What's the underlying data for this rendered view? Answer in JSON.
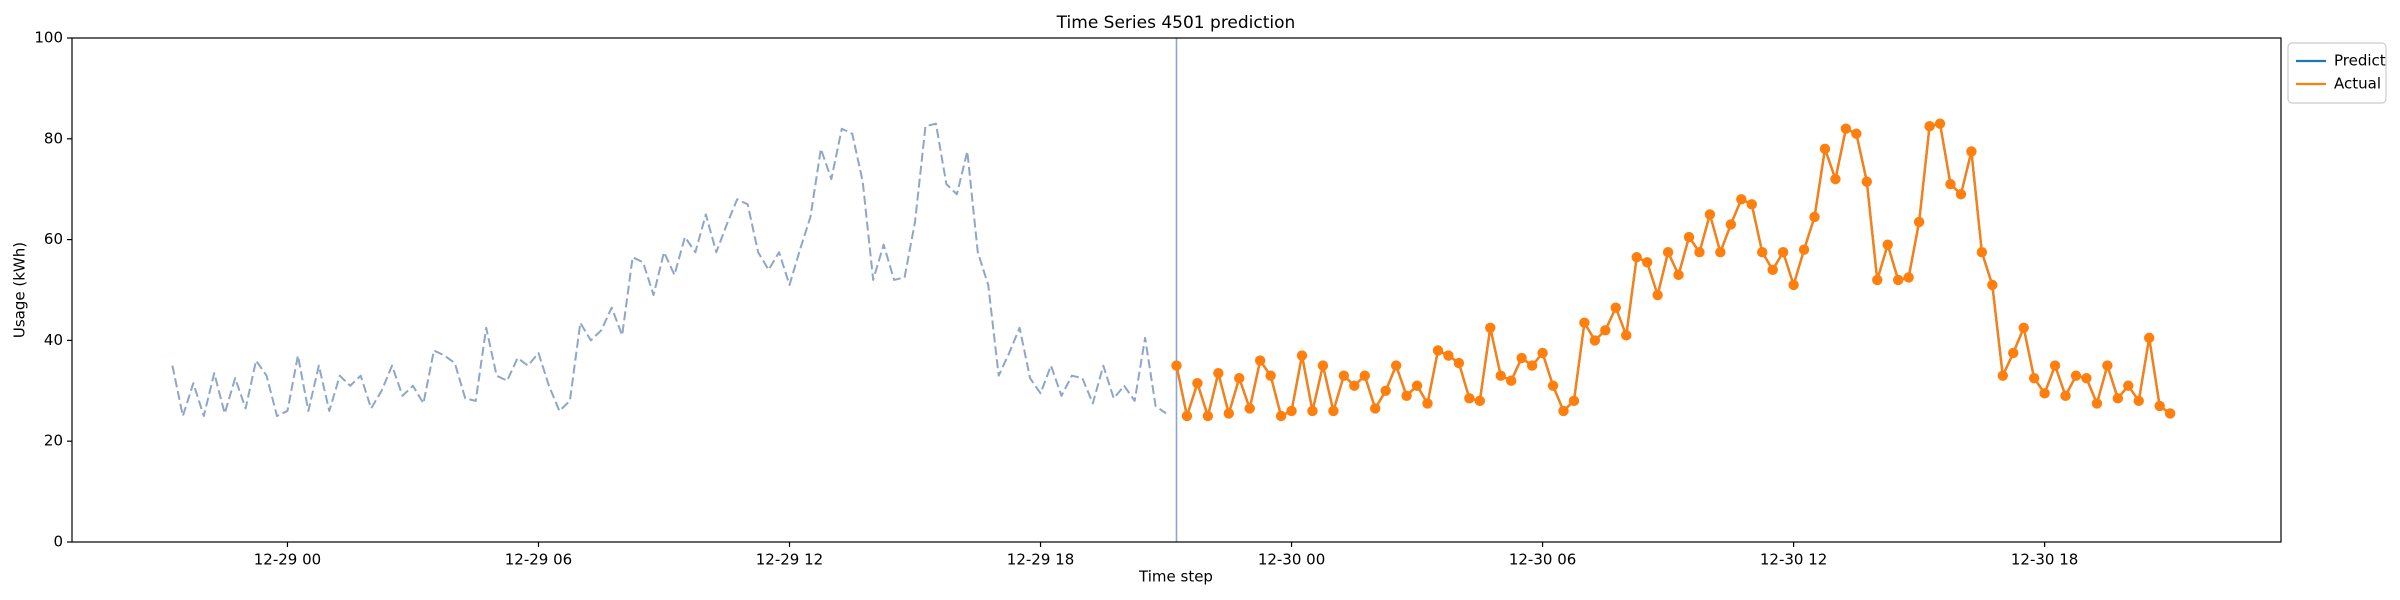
{
  "chart_data": {
    "type": "line",
    "title": "Time Series 4501 prediction",
    "xlabel": "Time step",
    "ylabel": "Usage (kWh)",
    "xlim": [
      -5.15,
      47.65
    ],
    "ylim": [
      0,
      100
    ],
    "xticks": [
      {
        "value": 0,
        "label": "12-29 00"
      },
      {
        "value": 6,
        "label": "12-29 06"
      },
      {
        "value": 12,
        "label": "12-29 12"
      },
      {
        "value": 18,
        "label": "12-29 18"
      },
      {
        "value": 24,
        "label": "12-30 00"
      },
      {
        "value": 30,
        "label": "12-30 06"
      },
      {
        "value": 36,
        "label": "12-30 12"
      },
      {
        "value": 42,
        "label": "12-30 18"
      }
    ],
    "yticks": [
      0,
      20,
      40,
      60,
      80,
      100
    ],
    "vline": 21.25,
    "vline_color": "#8ea6d0",
    "legend": "upper right outside",
    "series": [
      {
        "color": "#8ea6c8",
        "dashed": true,
        "markers": false,
        "x": [
          -2.75,
          -2.5,
          -2.25,
          -2,
          -1.75,
          -1.5,
          -1.25,
          -1,
          -0.75,
          -0.5,
          -0.25,
          0,
          0.25,
          0.5,
          0.75,
          1,
          1.25,
          1.5,
          1.75,
          2,
          2.25,
          2.5,
          2.75,
          3,
          3.25,
          3.5,
          3.75,
          4,
          4.25,
          4.5,
          4.75,
          5,
          5.25,
          5.5,
          5.75,
          6,
          6.25,
          6.5,
          6.75,
          7,
          7.25,
          7.5,
          7.75,
          8,
          8.25,
          8.5,
          8.75,
          9,
          9.25,
          9.5,
          9.75,
          10,
          10.25,
          10.5,
          10.75,
          11,
          11.25,
          11.5,
          11.75,
          12,
          12.25,
          12.5,
          12.75,
          13,
          13.25,
          13.5,
          13.75,
          14,
          14.25,
          14.5,
          14.75,
          15,
          15.25,
          15.5,
          15.75,
          16,
          16.25,
          16.5,
          16.75,
          17,
          17.25,
          17.5,
          17.75,
          18,
          18.25,
          18.5,
          18.75,
          19,
          19.25,
          19.5,
          19.75,
          20,
          20.25,
          20.5,
          20.75,
          21
        ],
        "values": [
          35,
          25,
          31.5,
          25,
          33.5,
          25.5,
          32.5,
          26.5,
          36,
          33,
          25,
          26,
          37,
          26,
          35,
          26,
          33,
          31,
          33,
          26.5,
          30,
          35,
          29,
          31,
          27.5,
          38,
          37,
          35.5,
          28.5,
          28,
          42.5,
          33,
          32,
          36.5,
          35,
          37.5,
          31,
          26,
          28,
          43.5,
          40,
          42,
          46.5,
          41,
          56.5,
          55.5,
          49,
          57.5,
          53,
          60.5,
          57.5,
          65,
          57.5,
          63,
          68,
          67,
          57.5,
          54,
          57.5,
          51,
          58,
          64.5,
          78,
          72,
          82,
          81,
          71.5,
          52,
          59,
          52,
          52.5,
          63.5,
          82.5,
          83,
          71,
          69,
          77.5,
          57.5,
          51,
          33,
          37.5,
          42.5,
          32.5,
          29.5,
          35,
          29,
          33,
          32.5,
          27.5,
          35,
          28.5,
          31,
          28,
          40.5,
          27,
          25.5
        ]
      },
      {
        "name": "Predict",
        "color": "#1f77b4",
        "dashed": false,
        "markers": false,
        "x": [
          21.25,
          21.5,
          21.75,
          22,
          22.25,
          22.5,
          22.75,
          23,
          23.25,
          23.5,
          23.75,
          24,
          24.25,
          24.5,
          24.75,
          25,
          25.25,
          25.5,
          25.75,
          26,
          26.25,
          26.5,
          26.75,
          27,
          27.25,
          27.5,
          27.75,
          28,
          28.25,
          28.5,
          28.75,
          29,
          29.25,
          29.5,
          29.75,
          30,
          30.25,
          30.5,
          30.75,
          31,
          31.25,
          31.5,
          31.75,
          32,
          32.25,
          32.5,
          32.75,
          33,
          33.25,
          33.5,
          33.75,
          34,
          34.25,
          34.5,
          34.75,
          35,
          35.25,
          35.5,
          35.75,
          36,
          36.25,
          36.5,
          36.75,
          37,
          37.25,
          37.5,
          37.75,
          38,
          38.25,
          38.5,
          38.75,
          39,
          39.25,
          39.5,
          39.75,
          40,
          40.25,
          40.5,
          40.75,
          41,
          41.25,
          41.5,
          41.75,
          42,
          42.25,
          42.5,
          42.75,
          43,
          43.25,
          43.5,
          43.75,
          44,
          44.25,
          44.5,
          44.75,
          45
        ],
        "values": [
          35,
          25,
          31.5,
          25,
          33.5,
          25.5,
          32.5,
          26.5,
          36,
          33,
          25,
          26,
          37,
          26,
          35,
          26,
          33,
          31,
          33,
          26.5,
          30,
          35,
          29,
          31,
          27.5,
          38,
          37,
          35.5,
          28.5,
          28,
          42.5,
          33,
          32,
          36.5,
          35,
          37.5,
          31,
          26,
          28,
          43.5,
          40,
          42,
          46.5,
          41,
          56.5,
          55.5,
          49,
          57.5,
          53,
          60.5,
          57.5,
          65,
          57.5,
          63,
          68,
          67,
          57.5,
          54,
          57.5,
          51,
          58,
          64.5,
          78,
          72,
          82,
          81,
          71.5,
          52,
          59,
          52,
          52.5,
          63.5,
          82.5,
          83,
          71,
          69,
          77.5,
          57.5,
          51,
          33,
          37.5,
          42.5,
          32.5,
          29.5,
          35,
          29,
          33,
          32.5,
          27.5,
          35,
          28.5,
          31,
          28,
          40.5,
          27,
          25.5
        ]
      },
      {
        "name": "Actual",
        "color": "#ff7f0e",
        "dashed": false,
        "markers": true,
        "x": [
          21.25,
          21.5,
          21.75,
          22,
          22.25,
          22.5,
          22.75,
          23,
          23.25,
          23.5,
          23.75,
          24,
          24.25,
          24.5,
          24.75,
          25,
          25.25,
          25.5,
          25.75,
          26,
          26.25,
          26.5,
          26.75,
          27,
          27.25,
          27.5,
          27.75,
          28,
          28.25,
          28.5,
          28.75,
          29,
          29.25,
          29.5,
          29.75,
          30,
          30.25,
          30.5,
          30.75,
          31,
          31.25,
          31.5,
          31.75,
          32,
          32.25,
          32.5,
          32.75,
          33,
          33.25,
          33.5,
          33.75,
          34,
          34.25,
          34.5,
          34.75,
          35,
          35.25,
          35.5,
          35.75,
          36,
          36.25,
          36.5,
          36.75,
          37,
          37.25,
          37.5,
          37.75,
          38,
          38.25,
          38.5,
          38.75,
          39,
          39.25,
          39.5,
          39.75,
          40,
          40.25,
          40.5,
          40.75,
          41,
          41.25,
          41.5,
          41.75,
          42,
          42.25,
          42.5,
          42.75,
          43,
          43.25,
          43.5,
          43.75,
          44,
          44.25,
          44.5,
          44.75,
          45
        ],
        "values": [
          35,
          25,
          31.5,
          25,
          33.5,
          25.5,
          32.5,
          26.5,
          36,
          33,
          25,
          26,
          37,
          26,
          35,
          26,
          33,
          31,
          33,
          26.5,
          30,
          35,
          29,
          31,
          27.5,
          38,
          37,
          35.5,
          28.5,
          28,
          42.5,
          33,
          32,
          36.5,
          35,
          37.5,
          31,
          26,
          28,
          43.5,
          40,
          42,
          46.5,
          41,
          56.5,
          55.5,
          49,
          57.5,
          53,
          60.5,
          57.5,
          65,
          57.5,
          63,
          68,
          67,
          57.5,
          54,
          57.5,
          51,
          58,
          64.5,
          78,
          72,
          82,
          81,
          71.5,
          52,
          59,
          52,
          52.5,
          63.5,
          82.5,
          83,
          71,
          69,
          77.5,
          57.5,
          51,
          33,
          37.5,
          42.5,
          32.5,
          29.5,
          35,
          29,
          33,
          32.5,
          27.5,
          35,
          28.5,
          31,
          28,
          40.5,
          27,
          25.5
        ]
      }
    ]
  }
}
